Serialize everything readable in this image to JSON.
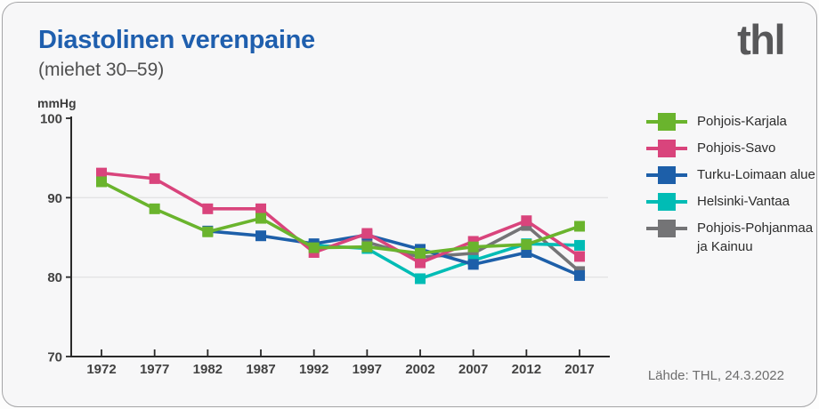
{
  "header": {
    "title": "Diastolinen verenpaine",
    "subtitle": "(miehet 30–59)",
    "logo": "thl"
  },
  "footer": {
    "source": "Lähde: THL, 24.3.2022"
  },
  "colors": {
    "title_blue": "#1f5fae",
    "logo_gray": "#58585a",
    "axis": "#2a2a2a",
    "gridline": "#e3e3e4",
    "tick_label": "#424242",
    "card_background": "#f7f7f8",
    "card_border": "#a5a5a7"
  },
  "chart_data": {
    "type": "line",
    "title": "Diastolinen verenpaine (miehet 30–59)",
    "xlabel": "",
    "ylabel": "mmHg",
    "ylim": [
      70,
      100
    ],
    "yticks": [
      100,
      90,
      80,
      70
    ],
    "gridlines_at": [
      90,
      80
    ],
    "xticks": [
      1972,
      1977,
      1982,
      1987,
      1992,
      1997,
      2002,
      2007,
      2012,
      2017
    ],
    "legend_position": "right",
    "marker": "square",
    "grid": "horizontal-only",
    "series": [
      {
        "name": "Pohjois-Karjala",
        "legend_lines": [
          "Pohjois-Karjala"
        ],
        "color": "#6ab42d",
        "x": [
          1972,
          1977,
          1982,
          1987,
          1992,
          1997,
          2002,
          2007,
          2012,
          2017
        ],
        "y": [
          92.0,
          88.6,
          85.7,
          87.4,
          83.7,
          83.8,
          83.0,
          83.8,
          84.1,
          86.4
        ]
      },
      {
        "name": "Pohjois-Savo",
        "legend_lines": [
          "Pohjois-Savo"
        ],
        "color": "#d9447c",
        "x": [
          1972,
          1977,
          1982,
          1987,
          1992,
          1997,
          2002,
          2007,
          2012,
          2017
        ],
        "y": [
          93.1,
          92.4,
          88.6,
          88.6,
          83.1,
          85.5,
          81.8,
          84.5,
          87.1,
          82.6
        ]
      },
      {
        "name": "Turku-Loimaan alue",
        "legend_lines": [
          "Turku-Loimaan alue"
        ],
        "color": "#1d5fa9",
        "x": [
          1982,
          1987,
          1992,
          1997,
          2002,
          2007,
          2012,
          2017
        ],
        "y": [
          85.8,
          85.2,
          84.2,
          85.3,
          83.5,
          81.6,
          83.1,
          80.2
        ]
      },
      {
        "name": "Helsinki-Vantaa",
        "legend_lines": [
          "Helsinki-Vantaa"
        ],
        "color": "#00bcb5",
        "x": [
          1992,
          1997,
          2002,
          2007,
          2012,
          2017
        ],
        "y": [
          84.0,
          83.6,
          79.8,
          82.1,
          84.2,
          84.0
        ]
      },
      {
        "name": "Pohjois-Pohjanmaa ja Kainuu",
        "legend_lines": [
          "Pohjois-Pohjanmaa",
          "ja Kainuu"
        ],
        "color": "#747476",
        "x": [
          1997,
          2002,
          2007,
          2012,
          2017
        ],
        "y": [
          84.4,
          82.5,
          83.0,
          86.5,
          80.7
        ]
      }
    ]
  }
}
